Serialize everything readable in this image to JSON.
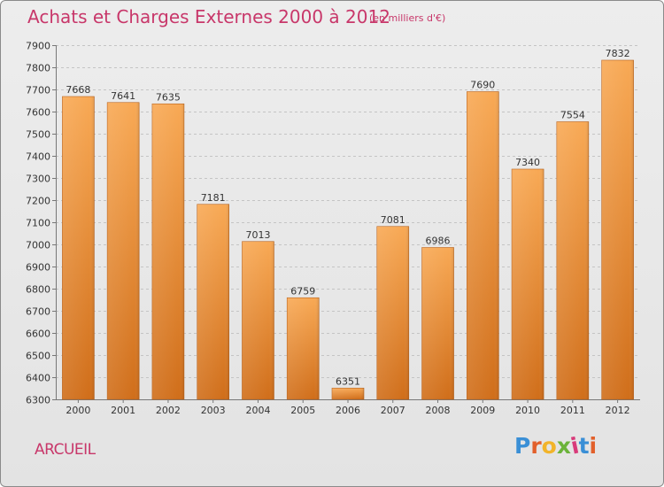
{
  "header": {
    "title": "Achats et Charges Externes 2000 à 2012",
    "unit": "(en milliers d'€)"
  },
  "footer": {
    "commune": "ARCUEIL",
    "logo_text": "Proxiti",
    "logo_colors": [
      "#3a8fd6",
      "#e2602b",
      "#f2b42a",
      "#6bb33a",
      "#d83a7a",
      "#3a8fd6",
      "#e2602b"
    ]
  },
  "colors": {
    "title": "#c8376a",
    "bar_light": "#f8a955",
    "bar_dark": "#d06e1a"
  },
  "chart_data": {
    "type": "bar",
    "title": "Achats et Charges Externes 2000 à 2012",
    "subtitle": "(en milliers d'€)",
    "categories": [
      "2000",
      "2001",
      "2002",
      "2003",
      "2004",
      "2005",
      "2006",
      "2007",
      "2008",
      "2009",
      "2010",
      "2011",
      "2012"
    ],
    "values": [
      7668,
      7641,
      7635,
      7181,
      7013,
      6759,
      6351,
      7081,
      6986,
      7690,
      7340,
      7554,
      7832
    ],
    "ylim": [
      6300,
      7900
    ],
    "yticks": [
      6300,
      6400,
      6500,
      6600,
      6700,
      6800,
      6900,
      7000,
      7100,
      7200,
      7300,
      7400,
      7500,
      7600,
      7700,
      7800,
      7900
    ],
    "grid": true,
    "data_labels": true
  }
}
